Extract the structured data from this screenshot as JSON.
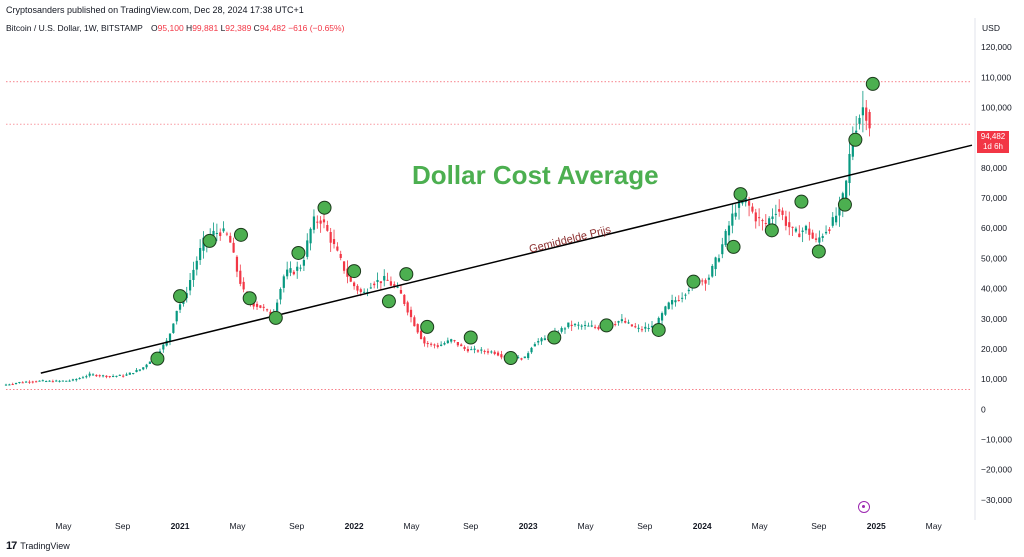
{
  "header": {
    "text": "Cryptosanders published on TradingView.com, Dec 28, 2024 17:38 UTC+1"
  },
  "legend": {
    "symbol": "Bitcoin / U.S. Dollar, 1W, BITSTAMP",
    "o_label": "O",
    "o_value": "95,100",
    "h_label": "H",
    "h_value": "99,881",
    "l_label": "L",
    "l_value": "92,389",
    "c_label": "C",
    "c_value": "94,482",
    "change": "−616 (−0.65%)"
  },
  "currency": "USD",
  "price_tag": {
    "price": "94,482",
    "countdown": "1d 6h"
  },
  "annotations": {
    "title": "Dollar Cost Average",
    "trendline_label": "Gemiddelde Prijs"
  },
  "footer": {
    "brand": "TradingView"
  },
  "colors": {
    "up": "#089981",
    "down": "#f23645",
    "marker": "#4caf50",
    "title": "#4caf50",
    "trend": "#000000"
  },
  "chart_data": {
    "type": "candlestick",
    "title": "Bitcoin / U.S. Dollar, 1W, BITSTAMP",
    "ylim": [
      -35000,
      125000
    ],
    "y_ticks": [
      {
        "v": 120000,
        "t": "120,000"
      },
      {
        "v": 110000,
        "t": "110,000"
      },
      {
        "v": 100000,
        "t": "100,000"
      },
      {
        "v": 90000,
        "t": "90,000"
      },
      {
        "v": 80000,
        "t": "80,000"
      },
      {
        "v": 70000,
        "t": "70,000"
      },
      {
        "v": 60000,
        "t": "60,000"
      },
      {
        "v": 50000,
        "t": "50,000"
      },
      {
        "v": 40000,
        "t": "40,000"
      },
      {
        "v": 30000,
        "t": "30,000"
      },
      {
        "v": 20000,
        "t": "20,000"
      },
      {
        "v": 10000,
        "t": "10,000"
      },
      {
        "v": 0,
        "t": "0"
      },
      {
        "v": -10000,
        "t": "−10,000"
      },
      {
        "v": -20000,
        "t": "−20,000"
      },
      {
        "v": -30000,
        "t": "−30,000"
      }
    ],
    "x_ticks": [
      {
        "d": 2020.33,
        "t": "May",
        "bold": false
      },
      {
        "d": 2020.67,
        "t": "Sep",
        "bold": false
      },
      {
        "d": 2021.0,
        "t": "2021",
        "bold": true
      },
      {
        "d": 2021.33,
        "t": "May",
        "bold": false
      },
      {
        "d": 2021.67,
        "t": "Sep",
        "bold": false
      },
      {
        "d": 2022.0,
        "t": "2022",
        "bold": true
      },
      {
        "d": 2022.33,
        "t": "May",
        "bold": false
      },
      {
        "d": 2022.67,
        "t": "Sep",
        "bold": false
      },
      {
        "d": 2023.0,
        "t": "2023",
        "bold": true
      },
      {
        "d": 2023.33,
        "t": "May",
        "bold": false
      },
      {
        "d": 2023.67,
        "t": "Sep",
        "bold": false
      },
      {
        "d": 2024.0,
        "t": "2024",
        "bold": true
      },
      {
        "d": 2024.33,
        "t": "May",
        "bold": false
      },
      {
        "d": 2024.67,
        "t": "Sep",
        "bold": false
      },
      {
        "d": 2025.0,
        "t": "2025",
        "bold": true
      },
      {
        "d": 2025.33,
        "t": "May",
        "bold": false
      }
    ],
    "xlim": [
      2020.0,
      2025.55
    ],
    "price_path": [
      [
        2020.0,
        8000
      ],
      [
        2020.1,
        9000
      ],
      [
        2020.2,
        9400
      ],
      [
        2020.3,
        9300
      ],
      [
        2020.4,
        9600
      ],
      [
        2020.5,
        11500
      ],
      [
        2020.6,
        11000
      ],
      [
        2020.7,
        11200
      ],
      [
        2020.8,
        13500
      ],
      [
        2020.87,
        17500
      ],
      [
        2020.95,
        23000
      ],
      [
        2021.0,
        33000
      ],
      [
        2021.05,
        38000
      ],
      [
        2021.1,
        47000
      ],
      [
        2021.15,
        55000
      ],
      [
        2021.2,
        58000
      ],
      [
        2021.25,
        59000
      ],
      [
        2021.3,
        57000
      ],
      [
        2021.35,
        45000
      ],
      [
        2021.4,
        36000
      ],
      [
        2021.48,
        34000
      ],
      [
        2021.55,
        31000
      ],
      [
        2021.62,
        45000
      ],
      [
        2021.68,
        46000
      ],
      [
        2021.72,
        48000
      ],
      [
        2021.78,
        62000
      ],
      [
        2021.83,
        63000
      ],
      [
        2021.88,
        57000
      ],
      [
        2021.95,
        48000
      ],
      [
        2022.0,
        42000
      ],
      [
        2022.07,
        38000
      ],
      [
        2022.12,
        42000
      ],
      [
        2022.2,
        43000
      ],
      [
        2022.28,
        39000
      ],
      [
        2022.35,
        30000
      ],
      [
        2022.42,
        22000
      ],
      [
        2022.5,
        21000
      ],
      [
        2022.58,
        23000
      ],
      [
        2022.65,
        20000
      ],
      [
        2022.72,
        19500
      ],
      [
        2022.82,
        19000
      ],
      [
        2022.9,
        16800
      ],
      [
        2023.0,
        17000
      ],
      [
        2023.05,
        22000
      ],
      [
        2023.15,
        24000
      ],
      [
        2023.25,
        28000
      ],
      [
        2023.35,
        27500
      ],
      [
        2023.45,
        27000
      ],
      [
        2023.55,
        29500
      ],
      [
        2023.65,
        26500
      ],
      [
        2023.75,
        27500
      ],
      [
        2023.82,
        34500
      ],
      [
        2023.9,
        37500
      ],
      [
        2023.97,
        42500
      ],
      [
        2024.05,
        43000
      ],
      [
        2024.12,
        52000
      ],
      [
        2024.18,
        62000
      ],
      [
        2024.22,
        68000
      ],
      [
        2024.27,
        69000
      ],
      [
        2024.32,
        64000
      ],
      [
        2024.38,
        61000
      ],
      [
        2024.45,
        67000
      ],
      [
        2024.5,
        62000
      ],
      [
        2024.55,
        58000
      ],
      [
        2024.62,
        60000
      ],
      [
        2024.67,
        55000
      ],
      [
        2024.72,
        59000
      ],
      [
        2024.77,
        62000
      ],
      [
        2024.82,
        68000
      ],
      [
        2024.85,
        76000
      ],
      [
        2024.88,
        91000
      ],
      [
        2024.92,
        97000
      ],
      [
        2024.95,
        101000
      ],
      [
        2024.98,
        94500
      ]
    ],
    "markers": [
      {
        "d": 2020.87,
        "v": 16800
      },
      {
        "d": 2021.0,
        "v": 37500
      },
      {
        "d": 2021.17,
        "v": 55800
      },
      {
        "d": 2021.35,
        "v": 57800
      },
      {
        "d": 2021.4,
        "v": 36800
      },
      {
        "d": 2021.55,
        "v": 30300
      },
      {
        "d": 2021.68,
        "v": 51800
      },
      {
        "d": 2021.83,
        "v": 66800
      },
      {
        "d": 2022.0,
        "v": 45800
      },
      {
        "d": 2022.2,
        "v": 35800
      },
      {
        "d": 2022.3,
        "v": 44800
      },
      {
        "d": 2022.42,
        "v": 27300
      },
      {
        "d": 2022.67,
        "v": 23800
      },
      {
        "d": 2022.9,
        "v": 17000
      },
      {
        "d": 2023.15,
        "v": 23800
      },
      {
        "d": 2023.45,
        "v": 27800
      },
      {
        "d": 2023.75,
        "v": 26300
      },
      {
        "d": 2023.95,
        "v": 42300
      },
      {
        "d": 2024.18,
        "v": 53800
      },
      {
        "d": 2024.22,
        "v": 71300
      },
      {
        "d": 2024.4,
        "v": 59300
      },
      {
        "d": 2024.57,
        "v": 68800
      },
      {
        "d": 2024.67,
        "v": 52300
      },
      {
        "d": 2024.82,
        "v": 67800
      },
      {
        "d": 2024.88,
        "v": 89300
      },
      {
        "d": 2024.98,
        "v": 107800
      }
    ],
    "trendline": {
      "from": [
        2020.2,
        12000
      ],
      "to": [
        2025.55,
        87500
      ]
    },
    "dotted_levels": [
      108500,
      94482,
      6500
    ]
  }
}
